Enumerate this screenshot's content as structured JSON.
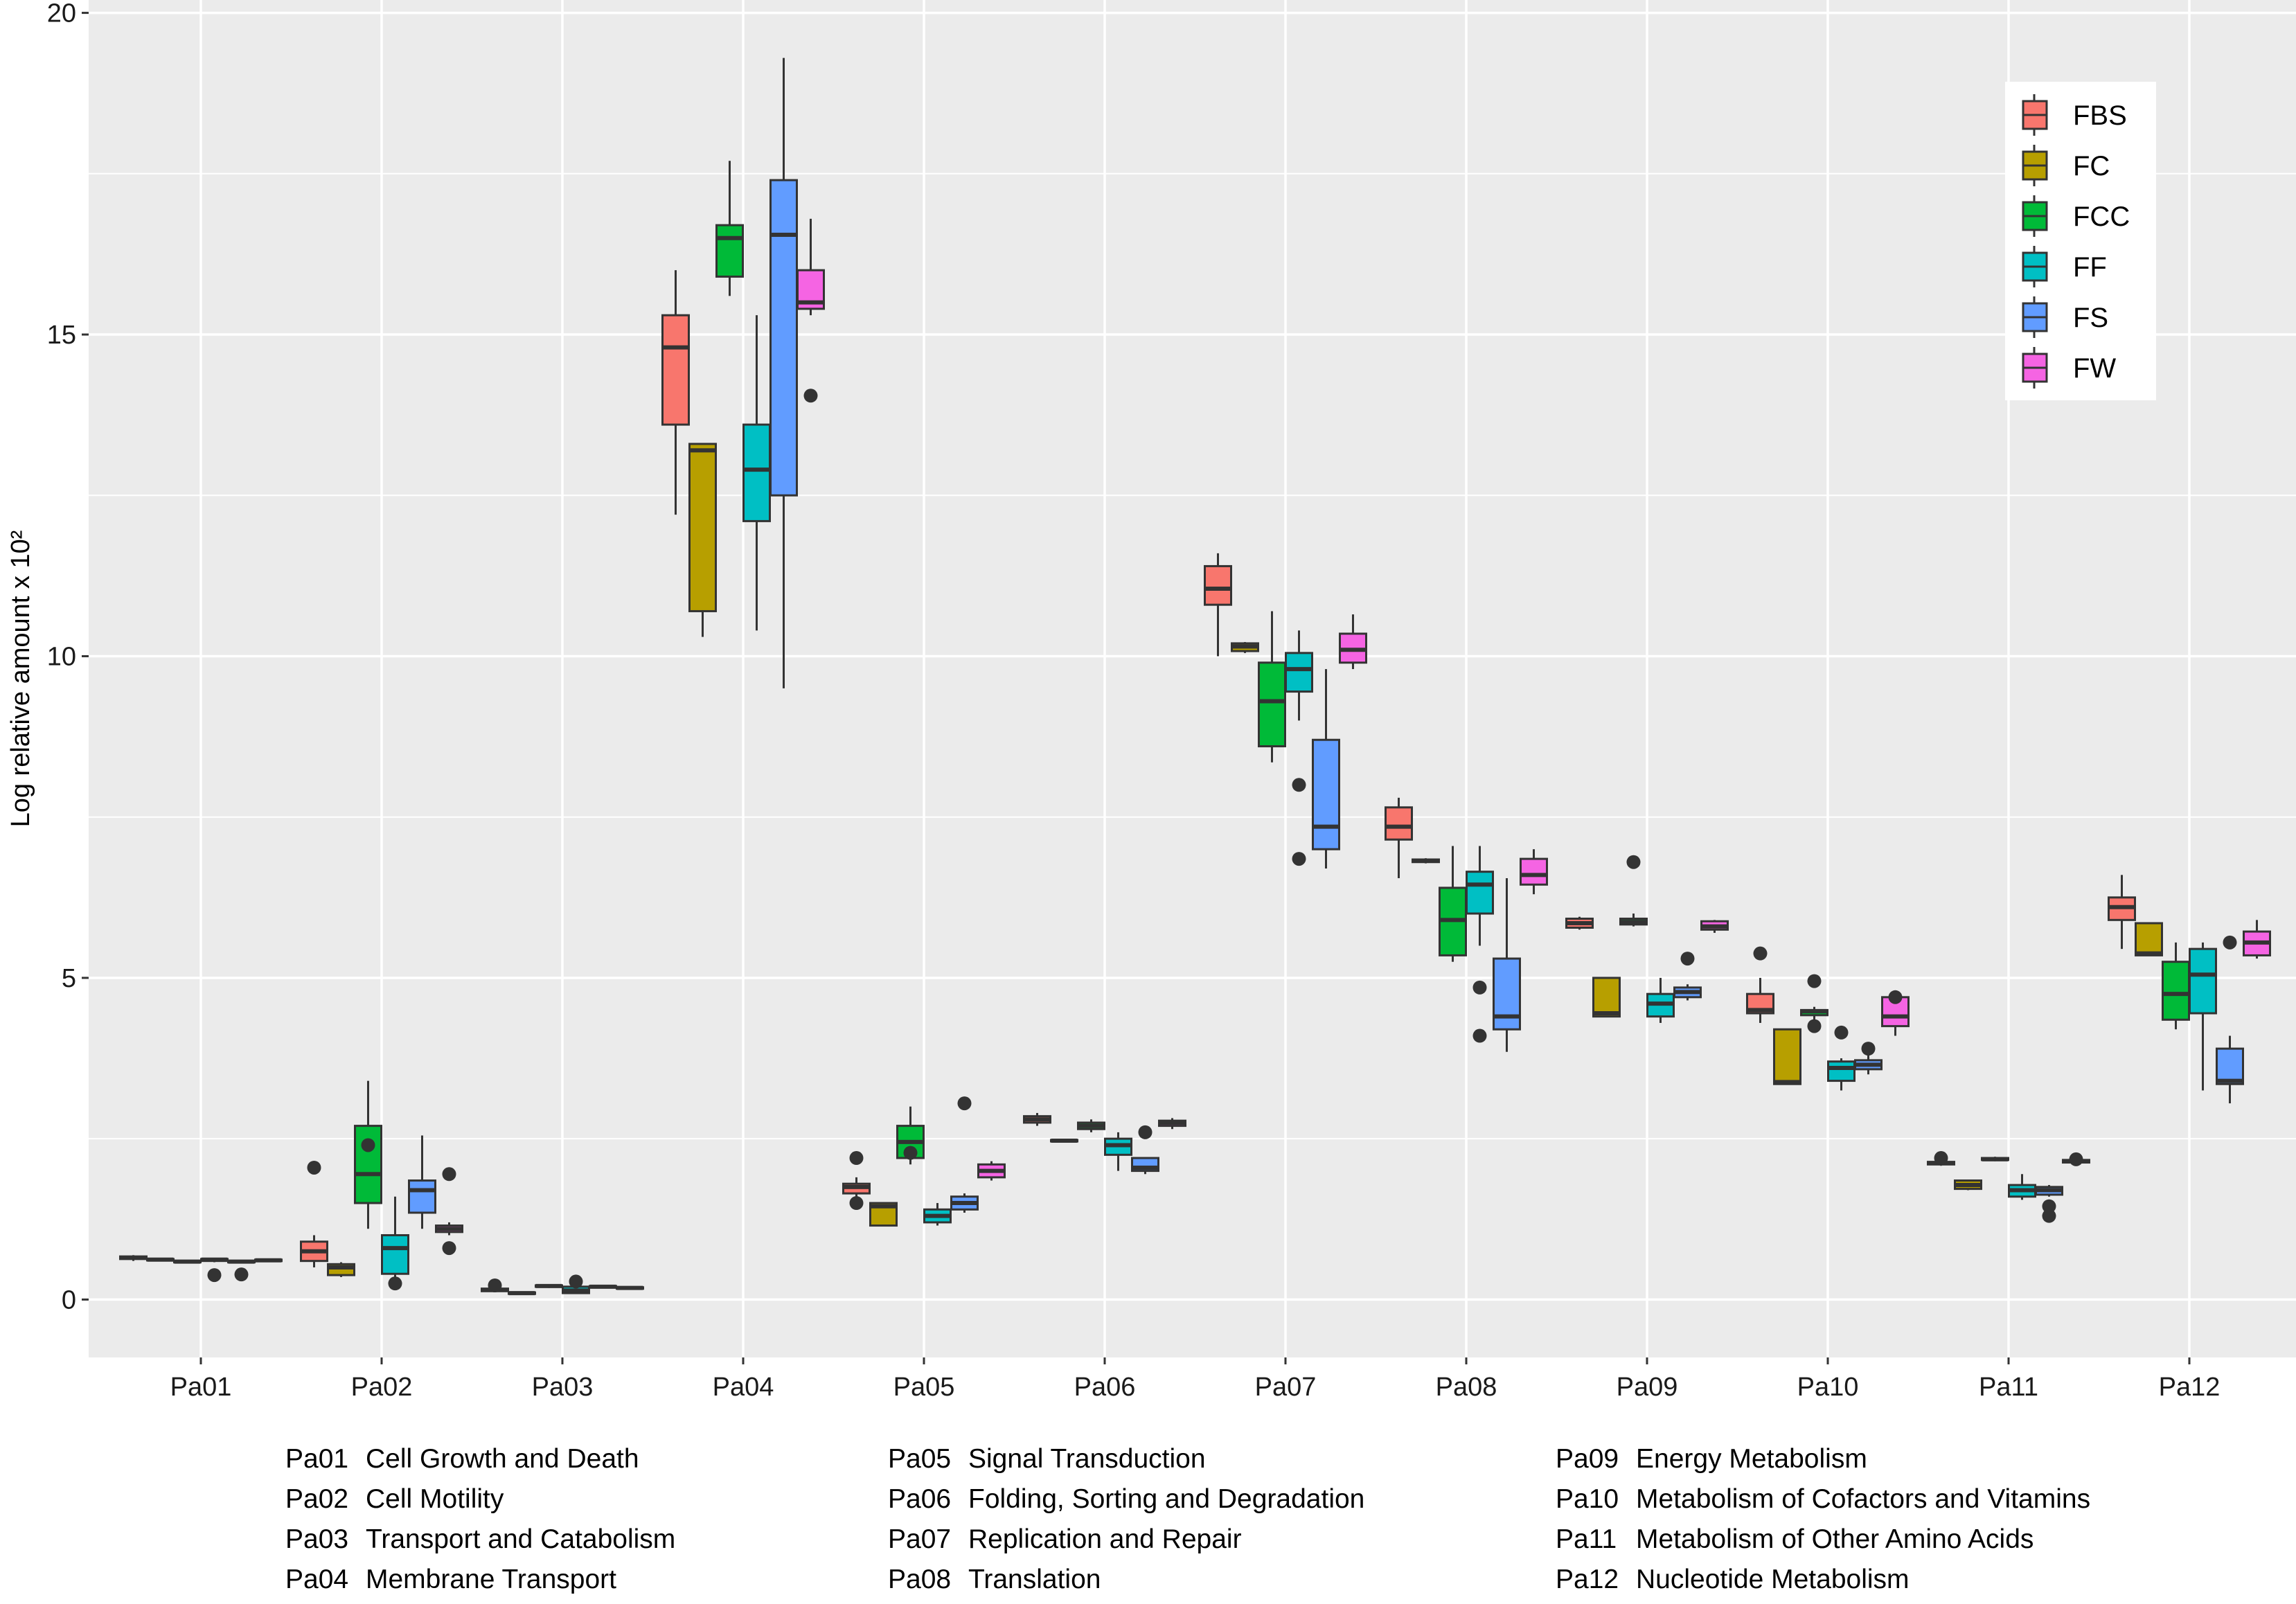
{
  "chart_data": {
    "type": "boxplot",
    "title": "",
    "ylabel": "Log relative amount x 10²",
    "xlabel": "",
    "ylim": [
      -0.9,
      20.2
    ],
    "yticks": [
      0,
      5,
      10,
      15,
      20
    ],
    "categories": [
      "Pa01",
      "Pa02",
      "Pa03",
      "Pa04",
      "Pa05",
      "Pa06",
      "Pa07",
      "Pa08",
      "Pa09",
      "Pa10",
      "Pa11",
      "Pa12"
    ],
    "groups": [
      {
        "name": "FBS",
        "color": "#F8766D"
      },
      {
        "name": "FC",
        "color": "#B79F00"
      },
      {
        "name": "FCC",
        "color": "#00BA38"
      },
      {
        "name": "FF",
        "color": "#00BFC4"
      },
      {
        "name": "FS",
        "color": "#619CFF"
      },
      {
        "name": "FW",
        "color": "#F564E3"
      }
    ],
    "legend_position": "top-right",
    "series": [
      {
        "category": "Pa01",
        "boxes": [
          {
            "group": "FBS",
            "min": 0.6,
            "q1": 0.63,
            "median": 0.65,
            "q3": 0.67,
            "max": 0.69,
            "outliers": []
          },
          {
            "group": "FC",
            "min": 0.6,
            "q1": 0.61,
            "median": 0.62,
            "q3": 0.63,
            "max": 0.64,
            "outliers": []
          },
          {
            "group": "FCC",
            "min": 0.57,
            "q1": 0.58,
            "median": 0.59,
            "q3": 0.6,
            "max": 0.61,
            "outliers": []
          },
          {
            "group": "FF",
            "min": 0.58,
            "q1": 0.6,
            "median": 0.62,
            "q3": 0.63,
            "max": 0.65,
            "outliers": [
              0.38
            ]
          },
          {
            "group": "FS",
            "min": 0.57,
            "q1": 0.58,
            "median": 0.59,
            "q3": 0.6,
            "max": 0.61,
            "outliers": [
              0.39
            ]
          },
          {
            "group": "FW",
            "min": 0.59,
            "q1": 0.6,
            "median": 0.61,
            "q3": 0.62,
            "max": 0.63,
            "outliers": []
          }
        ]
      },
      {
        "category": "Pa02",
        "boxes": [
          {
            "group": "FBS",
            "min": 0.5,
            "q1": 0.6,
            "median": 0.75,
            "q3": 0.9,
            "max": 1.0,
            "outliers": [
              2.05
            ]
          },
          {
            "group": "FC",
            "min": 0.35,
            "q1": 0.38,
            "median": 0.5,
            "q3": 0.55,
            "max": 0.58,
            "outliers": []
          },
          {
            "group": "FCC",
            "min": 1.1,
            "q1": 1.5,
            "median": 1.95,
            "q3": 2.7,
            "max": 3.4,
            "outliers": [
              2.4
            ]
          },
          {
            "group": "FF",
            "min": 0.3,
            "q1": 0.4,
            "median": 0.8,
            "q3": 1.0,
            "max": 1.6,
            "outliers": [
              0.25
            ]
          },
          {
            "group": "FS",
            "min": 1.1,
            "q1": 1.35,
            "median": 1.7,
            "q3": 1.85,
            "max": 2.55,
            "outliers": []
          },
          {
            "group": "FW",
            "min": 1.0,
            "q1": 1.05,
            "median": 1.1,
            "q3": 1.15,
            "max": 1.2,
            "outliers": [
              1.95,
              0.8
            ]
          }
        ]
      },
      {
        "category": "Pa03",
        "boxes": [
          {
            "group": "FBS",
            "min": 0.12,
            "q1": 0.13,
            "median": 0.15,
            "q3": 0.17,
            "max": 0.18,
            "outliers": [
              0.22
            ]
          },
          {
            "group": "FC",
            "min": 0.08,
            "q1": 0.09,
            "median": 0.1,
            "q3": 0.11,
            "max": 0.12,
            "outliers": []
          },
          {
            "group": "FCC",
            "min": 0.18,
            "q1": 0.2,
            "median": 0.21,
            "q3": 0.22,
            "max": 0.24,
            "outliers": []
          },
          {
            "group": "FF",
            "min": 0.09,
            "q1": 0.1,
            "median": 0.14,
            "q3": 0.2,
            "max": 0.22,
            "outliers": [
              0.28
            ]
          },
          {
            "group": "FS",
            "min": 0.18,
            "q1": 0.19,
            "median": 0.2,
            "q3": 0.21,
            "max": 0.22,
            "outliers": []
          },
          {
            "group": "FW",
            "min": 0.16,
            "q1": 0.17,
            "median": 0.18,
            "q3": 0.19,
            "max": 0.2,
            "outliers": []
          }
        ]
      },
      {
        "category": "Pa04",
        "boxes": [
          {
            "group": "FBS",
            "min": 12.2,
            "q1": 13.6,
            "median": 14.8,
            "q3": 15.3,
            "max": 16.0,
            "outliers": []
          },
          {
            "group": "FC",
            "min": 10.3,
            "q1": 10.7,
            "median": 13.2,
            "q3": 13.3,
            "max": 13.3,
            "outliers": []
          },
          {
            "group": "FCC",
            "min": 15.6,
            "q1": 15.9,
            "median": 16.5,
            "q3": 16.7,
            "max": 17.7,
            "outliers": []
          },
          {
            "group": "FF",
            "min": 10.4,
            "q1": 12.1,
            "median": 12.9,
            "q3": 13.6,
            "max": 15.3,
            "outliers": []
          },
          {
            "group": "FS",
            "min": 9.5,
            "q1": 12.5,
            "median": 16.55,
            "q3": 17.4,
            "max": 19.3,
            "outliers": []
          },
          {
            "group": "FW",
            "min": 15.3,
            "q1": 15.4,
            "median": 15.5,
            "q3": 16.0,
            "max": 16.8,
            "outliers": [
              14.05
            ]
          }
        ]
      },
      {
        "category": "Pa05",
        "boxes": [
          {
            "group": "FBS",
            "min": 1.55,
            "q1": 1.65,
            "median": 1.75,
            "q3": 1.8,
            "max": 1.9,
            "outliers": [
              2.2,
              1.5
            ]
          },
          {
            "group": "FC",
            "min": 1.15,
            "q1": 1.15,
            "median": 1.45,
            "q3": 1.5,
            "max": 1.5,
            "outliers": []
          },
          {
            "group": "FCC",
            "min": 2.1,
            "q1": 2.2,
            "median": 2.45,
            "q3": 2.7,
            "max": 3.0,
            "outliers": [
              2.28
            ]
          },
          {
            "group": "FF",
            "min": 1.15,
            "q1": 1.2,
            "median": 1.3,
            "q3": 1.4,
            "max": 1.5,
            "outliers": []
          },
          {
            "group": "FS",
            "min": 1.35,
            "q1": 1.4,
            "median": 1.5,
            "q3": 1.6,
            "max": 1.65,
            "outliers": [
              3.05
            ]
          },
          {
            "group": "FW",
            "min": 1.85,
            "q1": 1.9,
            "median": 2.0,
            "q3": 2.1,
            "max": 2.15,
            "outliers": []
          }
        ]
      },
      {
        "category": "Pa06",
        "boxes": [
          {
            "group": "FBS",
            "min": 2.7,
            "q1": 2.75,
            "median": 2.8,
            "q3": 2.85,
            "max": 2.9,
            "outliers": []
          },
          {
            "group": "FC",
            "min": 2.45,
            "q1": 2.46,
            "median": 2.47,
            "q3": 2.48,
            "max": 2.49,
            "outliers": []
          },
          {
            "group": "FCC",
            "min": 2.6,
            "q1": 2.65,
            "median": 2.7,
            "q3": 2.75,
            "max": 2.8,
            "outliers": []
          },
          {
            "group": "FF",
            "min": 2.0,
            "q1": 2.25,
            "median": 2.4,
            "q3": 2.5,
            "max": 2.6,
            "outliers": []
          },
          {
            "group": "FS",
            "min": 1.95,
            "q1": 2.0,
            "median": 2.05,
            "q3": 2.2,
            "max": 2.2,
            "outliers": [
              2.6
            ]
          },
          {
            "group": "FW",
            "min": 2.65,
            "q1": 2.7,
            "median": 2.75,
            "q3": 2.78,
            "max": 2.82,
            "outliers": []
          }
        ]
      },
      {
        "category": "Pa07",
        "boxes": [
          {
            "group": "FBS",
            "min": 10.0,
            "q1": 10.8,
            "median": 11.05,
            "q3": 11.4,
            "max": 11.6,
            "outliers": []
          },
          {
            "group": "FC",
            "min": 10.05,
            "q1": 10.08,
            "median": 10.15,
            "q3": 10.2,
            "max": 10.22,
            "outliers": []
          },
          {
            "group": "FCC",
            "min": 8.35,
            "q1": 8.6,
            "median": 9.3,
            "q3": 9.9,
            "max": 10.7,
            "outliers": []
          },
          {
            "group": "FF",
            "min": 9.0,
            "q1": 9.45,
            "median": 9.8,
            "q3": 10.05,
            "max": 10.4,
            "outliers": [
              8.0,
              6.85
            ]
          },
          {
            "group": "FS",
            "min": 6.7,
            "q1": 7.0,
            "median": 7.35,
            "q3": 8.7,
            "max": 9.8,
            "outliers": []
          },
          {
            "group": "FW",
            "min": 9.8,
            "q1": 9.9,
            "median": 10.1,
            "q3": 10.35,
            "max": 10.65,
            "outliers": []
          }
        ]
      },
      {
        "category": "Pa08",
        "boxes": [
          {
            "group": "FBS",
            "min": 6.55,
            "q1": 7.15,
            "median": 7.35,
            "q3": 7.65,
            "max": 7.8,
            "outliers": []
          },
          {
            "group": "FC",
            "min": 6.78,
            "q1": 6.8,
            "median": 6.82,
            "q3": 6.84,
            "max": 6.86,
            "outliers": []
          },
          {
            "group": "FCC",
            "min": 5.25,
            "q1": 5.35,
            "median": 5.9,
            "q3": 6.4,
            "max": 7.05,
            "outliers": []
          },
          {
            "group": "FF",
            "min": 5.5,
            "q1": 6.0,
            "median": 6.45,
            "q3": 6.65,
            "max": 7.05,
            "outliers": [
              4.85,
              4.1
            ]
          },
          {
            "group": "FS",
            "min": 3.85,
            "q1": 4.2,
            "median": 4.4,
            "q3": 5.3,
            "max": 6.55,
            "outliers": []
          },
          {
            "group": "FW",
            "min": 6.3,
            "q1": 6.45,
            "median": 6.6,
            "q3": 6.85,
            "max": 7.0,
            "outliers": []
          }
        ]
      },
      {
        "category": "Pa09",
        "boxes": [
          {
            "group": "FBS",
            "min": 5.75,
            "q1": 5.78,
            "median": 5.85,
            "q3": 5.92,
            "max": 5.95,
            "outliers": []
          },
          {
            "group": "FC",
            "min": 4.4,
            "q1": 4.4,
            "median": 4.45,
            "q3": 5.0,
            "max": 5.0,
            "outliers": []
          },
          {
            "group": "FCC",
            "min": 5.8,
            "q1": 5.83,
            "median": 5.87,
            "q3": 5.92,
            "max": 6.0,
            "outliers": [
              6.8
            ]
          },
          {
            "group": "FF",
            "min": 4.3,
            "q1": 4.4,
            "median": 4.6,
            "q3": 4.75,
            "max": 5.0,
            "outliers": []
          },
          {
            "group": "FS",
            "min": 4.65,
            "q1": 4.7,
            "median": 4.78,
            "q3": 4.85,
            "max": 4.9,
            "outliers": [
              5.3
            ]
          },
          {
            "group": "FW",
            "min": 5.7,
            "q1": 5.75,
            "median": 5.8,
            "q3": 5.88,
            "max": 5.9,
            "outliers": []
          }
        ]
      },
      {
        "category": "Pa10",
        "boxes": [
          {
            "group": "FBS",
            "min": 4.3,
            "q1": 4.45,
            "median": 4.5,
            "q3": 4.75,
            "max": 5.0,
            "outliers": [
              5.38
            ]
          },
          {
            "group": "FC",
            "min": 3.35,
            "q1": 3.35,
            "median": 3.38,
            "q3": 4.2,
            "max": 4.2,
            "outliers": []
          },
          {
            "group": "FCC",
            "min": 4.35,
            "q1": 4.42,
            "median": 4.48,
            "q3": 4.5,
            "max": 4.55,
            "outliers": [
              4.95,
              4.25
            ]
          },
          {
            "group": "FF",
            "min": 3.25,
            "q1": 3.4,
            "median": 3.6,
            "q3": 3.7,
            "max": 3.75,
            "outliers": [
              4.15
            ]
          },
          {
            "group": "FS",
            "min": 3.5,
            "q1": 3.58,
            "median": 3.65,
            "q3": 3.72,
            "max": 3.8,
            "outliers": [
              3.9
            ]
          },
          {
            "group": "FW",
            "min": 4.1,
            "q1": 4.25,
            "median": 4.4,
            "q3": 4.7,
            "max": 4.8,
            "outliers": [
              4.7
            ]
          }
        ]
      },
      {
        "category": "Pa11",
        "boxes": [
          {
            "group": "FBS",
            "min": 2.08,
            "q1": 2.1,
            "median": 2.12,
            "q3": 2.14,
            "max": 2.16,
            "outliers": [
              2.2
            ]
          },
          {
            "group": "FC",
            "min": 1.7,
            "q1": 1.72,
            "median": 1.78,
            "q3": 1.85,
            "max": 1.86,
            "outliers": []
          },
          {
            "group": "FCC",
            "min": 2.15,
            "q1": 2.17,
            "median": 2.18,
            "q3": 2.2,
            "max": 2.22,
            "outliers": []
          },
          {
            "group": "FF",
            "min": 1.55,
            "q1": 1.6,
            "median": 1.7,
            "q3": 1.78,
            "max": 1.95,
            "outliers": []
          },
          {
            "group": "FS",
            "min": 1.6,
            "q1": 1.63,
            "median": 1.7,
            "q3": 1.75,
            "max": 1.78,
            "outliers": [
              1.45,
              1.3
            ]
          },
          {
            "group": "FW",
            "min": 2.12,
            "q1": 2.13,
            "median": 2.15,
            "q3": 2.17,
            "max": 2.2,
            "outliers": [
              2.18
            ]
          }
        ]
      },
      {
        "category": "Pa12",
        "boxes": [
          {
            "group": "FBS",
            "min": 5.45,
            "q1": 5.9,
            "median": 6.1,
            "q3": 6.25,
            "max": 6.6,
            "outliers": []
          },
          {
            "group": "FC",
            "min": 5.35,
            "q1": 5.35,
            "median": 5.38,
            "q3": 5.85,
            "max": 5.85,
            "outliers": []
          },
          {
            "group": "FCC",
            "min": 4.2,
            "q1": 4.35,
            "median": 4.75,
            "q3": 5.25,
            "max": 5.55,
            "outliers": []
          },
          {
            "group": "FF",
            "min": 3.25,
            "q1": 4.45,
            "median": 5.05,
            "q3": 5.45,
            "max": 5.55,
            "outliers": []
          },
          {
            "group": "FS",
            "min": 3.05,
            "q1": 3.35,
            "median": 3.4,
            "q3": 3.9,
            "max": 4.1,
            "outliers": [
              5.55
            ]
          },
          {
            "group": "FW",
            "min": 5.3,
            "q1": 5.35,
            "median": 5.55,
            "q3": 5.72,
            "max": 5.9,
            "outliers": []
          }
        ]
      }
    ]
  },
  "pathway_legend": [
    {
      "code": "Pa01",
      "name": "Cell Growth and Death"
    },
    {
      "code": "Pa02",
      "name": "Cell Motility"
    },
    {
      "code": "Pa03",
      "name": "Transport and Catabolism"
    },
    {
      "code": "Pa04",
      "name": "Membrane Transport"
    },
    {
      "code": "Pa05",
      "name": "Signal Transduction"
    },
    {
      "code": "Pa06",
      "name": "Folding, Sorting and Degradation"
    },
    {
      "code": "Pa07",
      "name": "Replication and Repair"
    },
    {
      "code": "Pa08",
      "name": "Translation"
    },
    {
      "code": "Pa09",
      "name": "Energy Metabolism"
    },
    {
      "code": "Pa10",
      "name": "Metabolism of Cofactors and Vitamins"
    },
    {
      "code": "Pa11",
      "name": "Metabolism of Other Amino Acids"
    },
    {
      "code": "Pa12",
      "name": "Nucleotide Metabolism"
    }
  ]
}
